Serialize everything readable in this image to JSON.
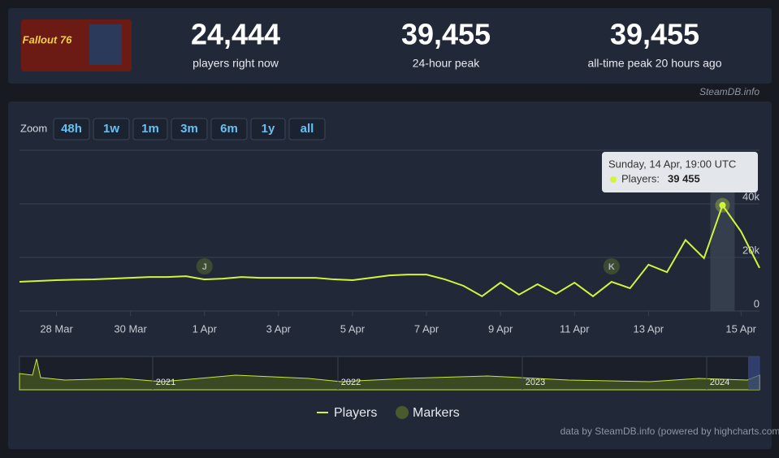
{
  "header": {
    "game_logo": "Fallout 76",
    "stats": [
      {
        "value": "24,444",
        "label": "players right now"
      },
      {
        "value": "39,455",
        "label": "24-hour peak"
      },
      {
        "value": "39,455",
        "label": "all-time peak 20 hours ago"
      }
    ],
    "credit": "SteamDB.info"
  },
  "zoom": {
    "label": "Zoom",
    "buttons": [
      "48h",
      "1w",
      "1m",
      "3m",
      "6m",
      "1y",
      "all"
    ]
  },
  "chart_data": {
    "type": "line",
    "x": [
      "27 Mar 00:00",
      "27 Mar 12:00",
      "28 Mar 00:00",
      "28 Mar 12:00",
      "29 Mar 00:00",
      "29 Mar 12:00",
      "30 Mar 00:00",
      "30 Mar 12:00",
      "31 Mar 00:00",
      "31 Mar 12:00",
      "1 Apr 00:00",
      "1 Apr 12:00",
      "2 Apr 00:00",
      "2 Apr 12:00",
      "3 Apr 00:00",
      "3 Apr 12:00",
      "4 Apr 00:00",
      "4 Apr 12:00",
      "5 Apr 00:00",
      "5 Apr 12:00",
      "6 Apr 00:00",
      "6 Apr 12:00",
      "7 Apr 00:00",
      "7 Apr 12:00",
      "8 Apr 00:00",
      "8 Apr 12:00",
      "9 Apr 00:00",
      "9 Apr 12:00",
      "10 Apr 00:00",
      "10 Apr 12:00",
      "11 Apr 00:00",
      "11 Apr 12:00",
      "12 Apr 00:00",
      "12 Apr 12:00",
      "13 Apr 00:00",
      "13 Apr 12:00",
      "14 Apr 00:00",
      "14 Apr 12:00",
      "14 Apr 19:00",
      "15 Apr 00:00",
      "15 Apr 12:00"
    ],
    "series": [
      {
        "name": "Players",
        "color": "#d2f53c",
        "values": [
          10900,
          11200,
          11500,
          11700,
          11800,
          12100,
          12400,
          12700,
          12700,
          13000,
          11800,
          12100,
          12700,
          12400,
          12400,
          12400,
          12400,
          11800,
          11500,
          12400,
          13300,
          13600,
          13600,
          11800,
          9400,
          5500,
          10600,
          6100,
          10000,
          6400,
          10600,
          5500,
          10900,
          8500,
          17300,
          14500,
          26500,
          19700,
          39455,
          29700,
          16100
        ]
      }
    ],
    "markers": {
      "name": "Markers",
      "color": "#4a5a2f",
      "items": [
        {
          "x": "1 Apr 00:00",
          "label": "J"
        },
        {
          "x": "12 Apr 00:00",
          "label": "K"
        }
      ]
    },
    "ylim": [
      0,
      60000
    ],
    "yticks": [
      0,
      {
        "value": 20000,
        "label": "20k"
      },
      {
        "value": 40000,
        "label": "40k"
      }
    ],
    "xticks": [
      {
        "value": "28 Mar 00:00",
        "label": "28 Mar"
      },
      {
        "value": "30 Mar 00:00",
        "label": "30 Mar"
      },
      {
        "value": "1 Apr 00:00",
        "label": "1 Apr"
      },
      {
        "value": "3 Apr 00:00",
        "label": "3 Apr"
      },
      {
        "value": "5 Apr 00:00",
        "label": "5 Apr"
      },
      {
        "value": "7 Apr 00:00",
        "label": "7 Apr"
      },
      {
        "value": "9 Apr 00:00",
        "label": "9 Apr"
      },
      {
        "value": "11 Apr 00:00",
        "label": "11 Apr"
      },
      {
        "value": "13 Apr 00:00",
        "label": "13 Apr"
      },
      {
        "value": "15 Apr 00:00",
        "label": "15 Apr"
      }
    ],
    "grid": true,
    "tooltip": {
      "x": "14 Apr 19:00",
      "date": "Sunday, 14 Apr, 19:00 UTC",
      "label": "Players:",
      "value": 39455,
      "value_label": "39 455"
    },
    "navigator_years": [
      "2021",
      "2022",
      "2023",
      "2024"
    ],
    "credit": "data by SteamDB.info (powered by highcharts.com)"
  }
}
